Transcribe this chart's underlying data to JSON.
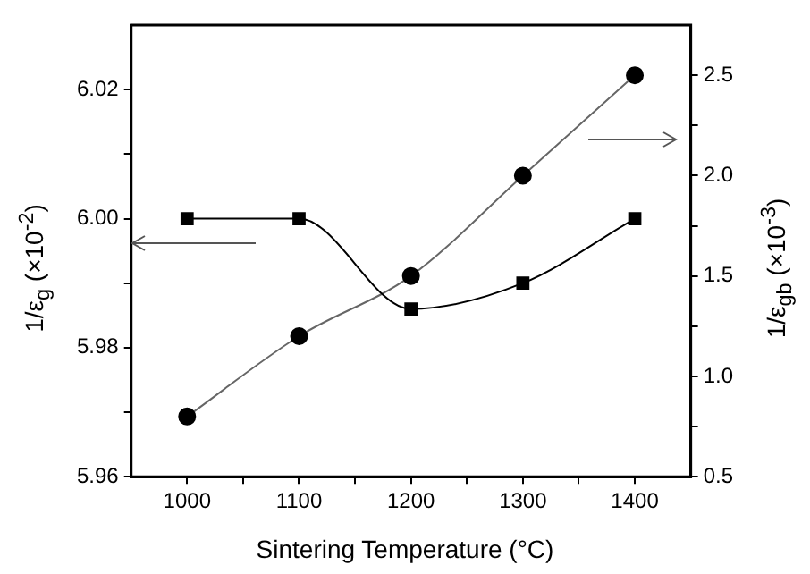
{
  "chart_data": {
    "type": "line",
    "xlabel": "Sintering Temperature (°C)",
    "ylabel": "1/ε$_{g}$ (×10$^{-2}$)",
    "y2label": "1/ε$_{gb}$ (×10$^{-3}$)",
    "x": [
      1000,
      1100,
      1200,
      1300,
      1400
    ],
    "series": [
      {
        "color": "#000000",
        "marker": "square",
        "values": [
          6.0,
          6.0,
          5.986,
          5.99,
          6.0
        ]
      },
      {
        "color": "#000000",
        "marker": "circle",
        "axis": "y2",
        "values": [
          0.8,
          1.2,
          1.5,
          2.0,
          2.5
        ]
      }
    ],
    "xlim": [
      950,
      1450
    ],
    "xticks": [
      1000,
      {
        "value": 1050,
        "label": null
      },
      1100,
      {
        "value": 1150,
        "label": null
      },
      1200,
      {
        "value": 1250,
        "label": null
      },
      1300,
      {
        "value": 1350,
        "label": null
      },
      1400
    ],
    "ylim": [
      5.96,
      6.03
    ],
    "yticks": [
      5.96,
      {
        "value": 5.97,
        "label": null
      },
      5.98,
      {
        "value": 5.99,
        "label": null
      },
      {
        "value": 6.0,
        "label": "6.00"
      },
      {
        "value": 6.01,
        "label": null
      },
      6.02
    ],
    "y2lim": [
      0.5,
      2.75
    ],
    "y2ticks": [
      0.5,
      {
        "value": 0.75,
        "label": null
      },
      {
        "value": 1.0,
        "label": "1.0"
      },
      {
        "value": 1.25,
        "label": null
      },
      1.5,
      {
        "value": 1.75,
        "label": null
      },
      {
        "value": 2.0,
        "label": "2.0"
      },
      {
        "value": 2.25,
        "label": null
      },
      2.5
    ],
    "grid": false,
    "legend": false,
    "line_style": "solid"
  }
}
